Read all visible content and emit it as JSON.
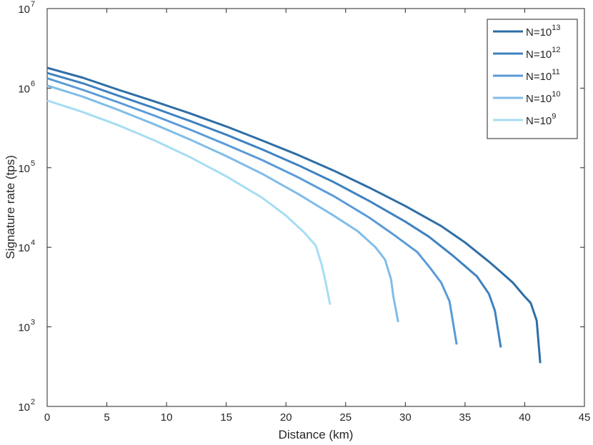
{
  "chart_data": {
    "type": "line",
    "title": "",
    "xlabel": "Distance (km)",
    "ylabel": "Signature rate (tps)",
    "xlim": [
      0,
      45
    ],
    "ylim": [
      100,
      10000000
    ],
    "yscale": "log",
    "grid": false,
    "legend_position": "top-right",
    "x_ticks": [
      "0",
      "5",
      "10",
      "15",
      "20",
      "25",
      "30",
      "35",
      "40",
      "45"
    ],
    "y_ticks": [
      {
        "base": "10",
        "exp": "2"
      },
      {
        "base": "10",
        "exp": "3"
      },
      {
        "base": "10",
        "exp": "4"
      },
      {
        "base": "10",
        "exp": "5"
      },
      {
        "base": "10",
        "exp": "6"
      },
      {
        "base": "10",
        "exp": "7"
      }
    ],
    "series": [
      {
        "legend_base": "N=10",
        "legend_exp": "13",
        "color": "#2e6ea6",
        "points": [
          [
            0,
            1800000
          ],
          [
            3,
            1350000
          ],
          [
            6,
            950000
          ],
          [
            9,
            680000
          ],
          [
            12,
            480000
          ],
          [
            15,
            330000
          ],
          [
            18,
            220000
          ],
          [
            21,
            145000
          ],
          [
            24,
            92000
          ],
          [
            27,
            56000
          ],
          [
            30,
            33000
          ],
          [
            33,
            18500
          ],
          [
            35,
            11500
          ],
          [
            37,
            6600
          ],
          [
            38,
            4900
          ],
          [
            39,
            3600
          ],
          [
            40,
            2400
          ],
          [
            40.5,
            2000
          ],
          [
            41,
            1200
          ],
          [
            41.3,
            350
          ]
        ]
      },
      {
        "legend_base": "N=10",
        "legend_exp": "12",
        "color": "#3e82c1",
        "points": [
          [
            0,
            1550000
          ],
          [
            3,
            1150000
          ],
          [
            6,
            800000
          ],
          [
            9,
            560000
          ],
          [
            12,
            385000
          ],
          [
            15,
            260000
          ],
          [
            18,
            170000
          ],
          [
            21,
            108000
          ],
          [
            24,
            66000
          ],
          [
            27,
            38000
          ],
          [
            30,
            21000
          ],
          [
            32,
            13500
          ],
          [
            34,
            7800
          ],
          [
            35,
            5800
          ],
          [
            36,
            4300
          ],
          [
            37,
            2600
          ],
          [
            37.5,
            1600
          ],
          [
            38,
            550
          ]
        ]
      },
      {
        "legend_base": "N=10",
        "legend_exp": "11",
        "color": "#5a9bd8",
        "points": [
          [
            0,
            1330000
          ],
          [
            3,
            950000
          ],
          [
            6,
            660000
          ],
          [
            9,
            450000
          ],
          [
            12,
            300000
          ],
          [
            15,
            195000
          ],
          [
            18,
            125000
          ],
          [
            21,
            76000
          ],
          [
            24,
            44000
          ],
          [
            27,
            23500
          ],
          [
            29,
            14500
          ],
          [
            31,
            8700
          ],
          [
            32,
            5700
          ],
          [
            33,
            3600
          ],
          [
            33.7,
            2100
          ],
          [
            34.3,
            600
          ]
        ]
      },
      {
        "legend_base": "N=10",
        "legend_exp": "10",
        "color": "#7fbde9",
        "points": [
          [
            0,
            1080000
          ],
          [
            3,
            780000
          ],
          [
            6,
            530000
          ],
          [
            9,
            350000
          ],
          [
            12,
            225000
          ],
          [
            15,
            140000
          ],
          [
            18,
            84000
          ],
          [
            21,
            47000
          ],
          [
            24,
            25000
          ],
          [
            26,
            16000
          ],
          [
            27.5,
            10000
          ],
          [
            28.3,
            7000
          ],
          [
            28.8,
            4000
          ],
          [
            29,
            2400
          ],
          [
            29.4,
            1150
          ]
        ]
      },
      {
        "legend_base": "N=10",
        "legend_exp": "9",
        "color": "#a6ddf3",
        "points": [
          [
            0,
            700000
          ],
          [
            3,
            500000
          ],
          [
            6,
            340000
          ],
          [
            9,
            220000
          ],
          [
            12,
            135000
          ],
          [
            15,
            78000
          ],
          [
            18,
            42000
          ],
          [
            20,
            25000
          ],
          [
            21.5,
            15500
          ],
          [
            22.5,
            10500
          ],
          [
            23,
            6000
          ],
          [
            23.3,
            3800
          ],
          [
            23.7,
            1900
          ]
        ]
      }
    ]
  }
}
